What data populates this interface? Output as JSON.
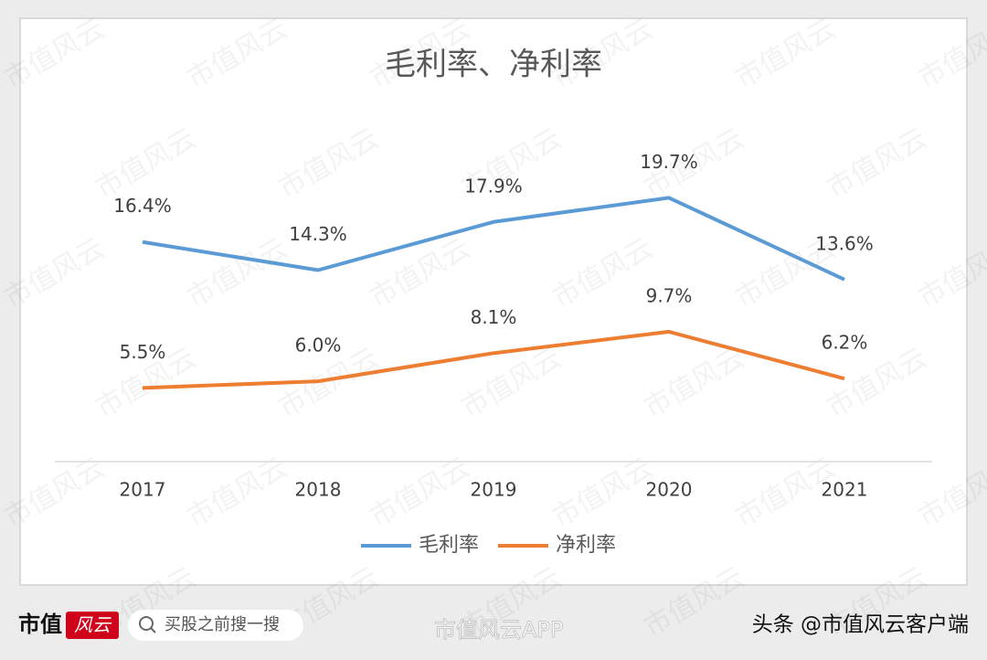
{
  "chart_data": {
    "type": "line",
    "title": "毛利率、净利率",
    "categories": [
      "2017",
      "2018",
      "2019",
      "2020",
      "2021"
    ],
    "series": [
      {
        "name": "毛利率",
        "color": "#5b9bd5",
        "values": [
          16.4,
          14.3,
          17.9,
          19.7,
          13.6
        ],
        "value_labels": [
          "16.4%",
          "14.3%",
          "17.9%",
          "19.7%",
          "13.6%"
        ]
      },
      {
        "name": "净利率",
        "color": "#ed7d31",
        "values": [
          5.5,
          6.0,
          8.1,
          9.7,
          6.2
        ],
        "value_labels": [
          "5.5%",
          "6.0%",
          "8.1%",
          "9.7%",
          "6.2%"
        ]
      }
    ],
    "ylim": [
      0,
      20
    ],
    "legend": "bottom"
  },
  "watermark": "市值风云",
  "footer": {
    "logo": "市值",
    "logo_badge": "风云",
    "search": "买股之前搜一搜",
    "app": "市值风云APP",
    "source": "头条 @市值风云客户端"
  }
}
